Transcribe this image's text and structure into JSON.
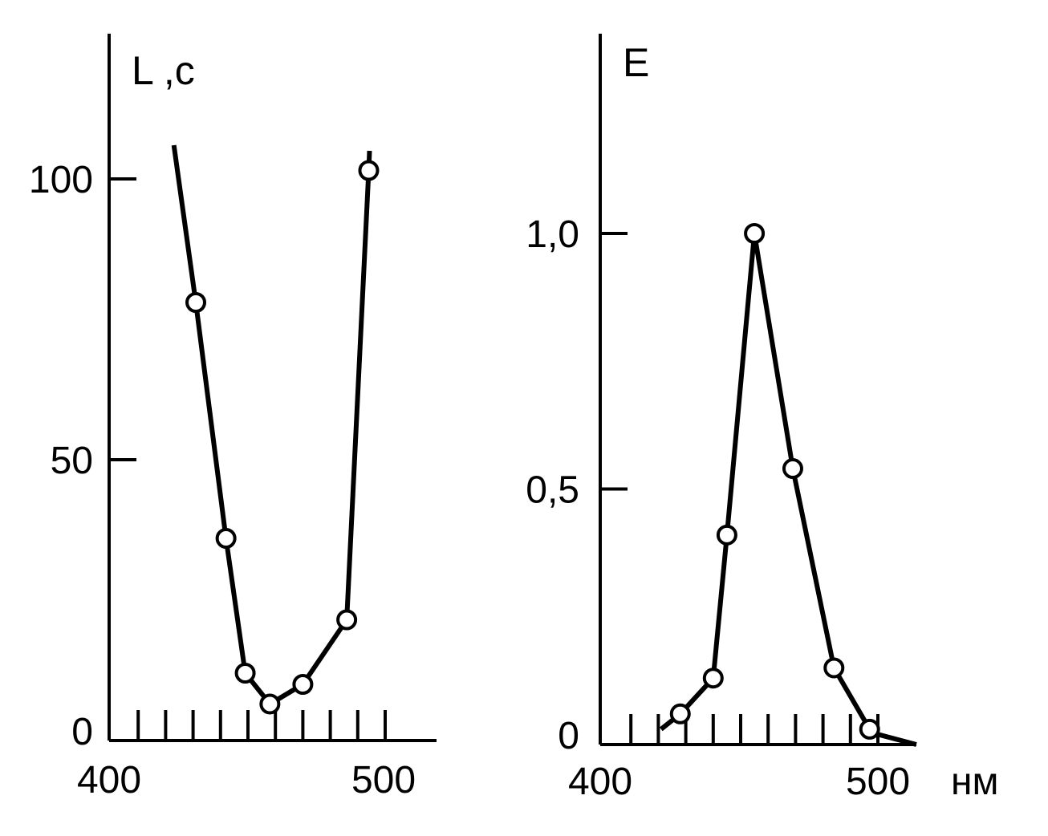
{
  "chart_data": [
    {
      "type": "line",
      "ylabel": "L ,c",
      "xlim": [
        400,
        520
      ],
      "ylim": [
        0,
        120
      ],
      "x_ticks": [
        410,
        420,
        430,
        440,
        450,
        460,
        470,
        480,
        490,
        500
      ],
      "x_tick_labels": [
        {
          "x": 400,
          "label": "400"
        },
        {
          "x": 500,
          "label": "500"
        }
      ],
      "y_ticks": [
        {
          "y": 0,
          "label": "0"
        },
        {
          "y": 50,
          "label": "50"
        },
        {
          "y": 100,
          "label": "100"
        }
      ],
      "line": {
        "x": [
          423,
          431,
          442,
          449,
          458,
          470,
          486,
          494,
          494.3
        ],
        "y": [
          106,
          78,
          36,
          12,
          6.5,
          10,
          21.5,
          101.5,
          105
        ]
      },
      "points": {
        "x": [
          431,
          442,
          449,
          458,
          470,
          486,
          494
        ],
        "y": [
          78,
          36,
          12,
          6.5,
          10,
          21.5,
          101.5
        ]
      },
      "grid": false,
      "legend": false
    },
    {
      "type": "line",
      "ylabel": "E",
      "xunit": "нм",
      "xlim": [
        400,
        514
      ],
      "ylim": [
        0,
        1.4
      ],
      "x_ticks": [
        410,
        420,
        430,
        440,
        450,
        460,
        470,
        480,
        490,
        500
      ],
      "x_tick_labels": [
        {
          "x": 400,
          "label": "400"
        },
        {
          "x": 500,
          "label": "500"
        }
      ],
      "y_ticks": [
        {
          "y": 0,
          "label": "0"
        },
        {
          "y": 0.5,
          "label": "0,5"
        },
        {
          "y": 1.0,
          "label": "1,0"
        }
      ],
      "line": {
        "x": [
          421,
          428,
          440,
          445,
          455,
          469,
          484,
          497,
          500,
          514
        ],
        "y": [
          0.03,
          0.06,
          0.13,
          0.41,
          1.0,
          0.54,
          0.15,
          0.03,
          0.02,
          0.0
        ]
      },
      "points": {
        "x": [
          428,
          440,
          445,
          455,
          469,
          484,
          497
        ],
        "y": [
          0.06,
          0.13,
          0.41,
          1.0,
          0.54,
          0.15,
          0.03
        ]
      },
      "grid": false,
      "legend": false
    }
  ]
}
